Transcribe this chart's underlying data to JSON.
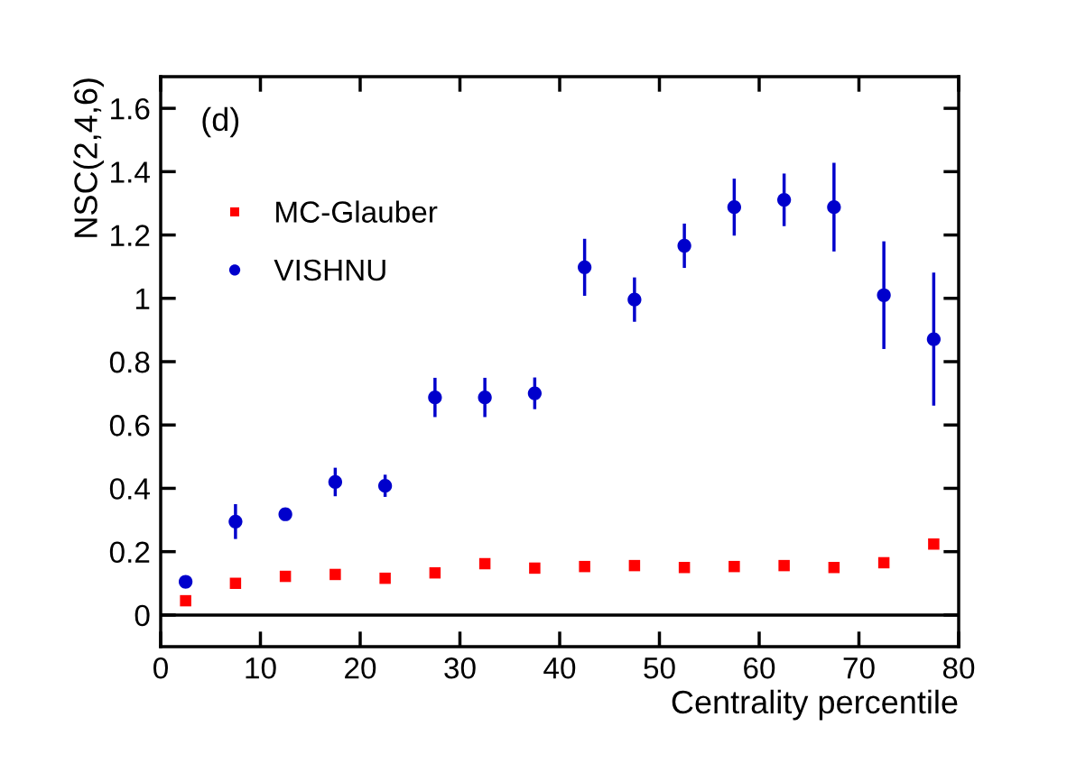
{
  "chart_data": {
    "type": "scatter",
    "xlabel": "Centrality percentile",
    "ylabel": "NSC(2,4,6)",
    "annotations": [
      "(d)"
    ],
    "x": [
      2.5,
      7.5,
      12.5,
      17.5,
      22.5,
      27.5,
      32.5,
      37.5,
      42.5,
      47.5,
      52.5,
      57.5,
      62.5,
      67.5,
      72.5,
      77.5
    ],
    "series": [
      {
        "name": "MC-Glauber",
        "color": "#ff0000",
        "marker": "square",
        "values": [
          0.045,
          0.1,
          0.122,
          0.128,
          0.116,
          0.133,
          0.162,
          0.148,
          0.153,
          0.156,
          0.15,
          0.153,
          0.156,
          0.15,
          0.165,
          0.224
        ],
        "errors": [
          0.015,
          0.015,
          null,
          null,
          null,
          null,
          null,
          null,
          null,
          null,
          null,
          null,
          null,
          null,
          null,
          null
        ]
      },
      {
        "name": "VISHNU",
        "color": "#0000cc",
        "marker": "circle",
        "values": [
          0.105,
          0.295,
          0.318,
          0.42,
          0.408,
          0.687,
          0.687,
          0.7,
          1.098,
          0.996,
          1.166,
          1.288,
          1.311,
          1.288,
          1.01,
          0.871
        ],
        "errors": [
          null,
          0.055,
          0.015,
          0.045,
          0.035,
          0.062,
          0.062,
          0.05,
          0.09,
          0.07,
          0.07,
          0.09,
          0.083,
          0.14,
          0.17,
          0.21
        ]
      }
    ],
    "xlim": [
      0,
      80
    ],
    "xticks": [
      0,
      10,
      20,
      30,
      40,
      50,
      60,
      70,
      80
    ],
    "ylim": [
      -0.1,
      1.7
    ],
    "yticks": [
      0,
      0.2,
      0.4,
      0.6,
      0.8,
      1,
      1.2,
      1.4,
      1.6
    ],
    "ref_lines": [
      {
        "axis": "y",
        "value": 0,
        "color": "#000000"
      }
    ],
    "grid": false,
    "legend": "top left"
  }
}
